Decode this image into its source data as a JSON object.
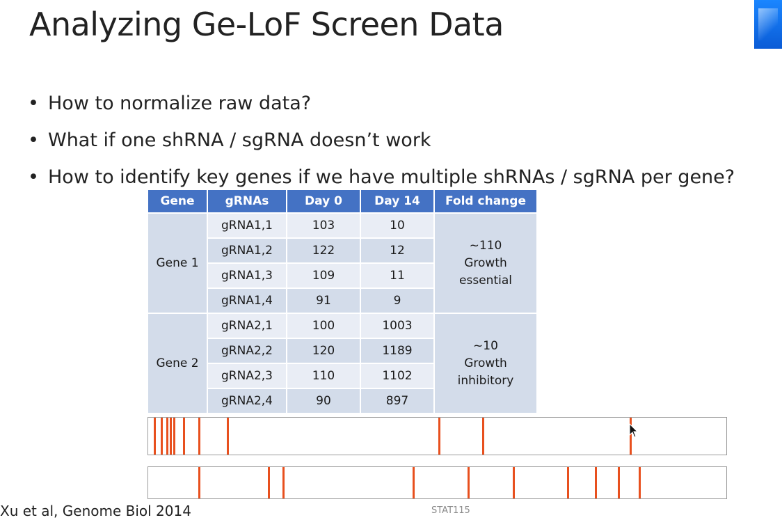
{
  "slide": {
    "title": "Analyzing Ge-LoF Screen Data",
    "bullets": [
      "How to normalize raw data?",
      "What if one shRNA / sgRNA doesn’t work",
      "How to identify key genes if we have multiple shRNAs / sgRNA per gene?"
    ],
    "citation": "Xu et al, Genome Biol 2014",
    "footer": "STAT115"
  },
  "table": {
    "headers": [
      "Gene",
      "gRNAs",
      "Day 0",
      "Day 14",
      "Fold change"
    ],
    "groups": [
      {
        "gene": "Gene 1",
        "fold_lines": [
          "~110",
          "Growth",
          "essential"
        ],
        "rows": [
          {
            "grna": "gRNA1,1",
            "day0": "103",
            "day14": "10"
          },
          {
            "grna": "gRNA1,2",
            "day0": "122",
            "day14": "12"
          },
          {
            "grna": "gRNA1,3",
            "day0": "109",
            "day14": "11"
          },
          {
            "grna": "gRNA1,4",
            "day0": "91",
            "day14": "9"
          }
        ]
      },
      {
        "gene": "Gene 2",
        "fold_lines": [
          "~10",
          "Growth",
          "inhibitory"
        ],
        "rows": [
          {
            "grna": "gRNA2,1",
            "day0": "100",
            "day14": "1003"
          },
          {
            "grna": "gRNA2,2",
            "day0": "120",
            "day14": "1189"
          },
          {
            "grna": "gRNA2,3",
            "day0": "110",
            "day14": "1102"
          },
          {
            "grna": "gRNA2,4",
            "day0": "90",
            "day14": "897"
          }
        ]
      }
    ]
  },
  "colors": {
    "header_bg": "#4472c4",
    "tick": "#e8501e"
  }
}
